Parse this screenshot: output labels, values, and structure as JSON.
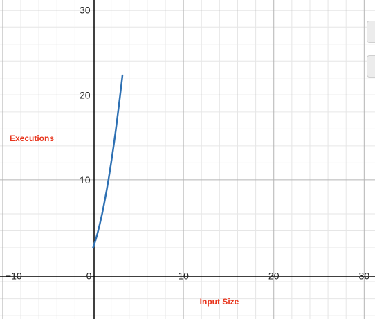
{
  "chart_data": {
    "type": "line",
    "title": "",
    "xlabel": "Input Size",
    "ylabel": "Executions",
    "x_ticks": [
      -10,
      0,
      10,
      20,
      30
    ],
    "y_ticks": [
      10,
      20,
      30
    ],
    "xlim": [
      -10.3,
      31.2
    ],
    "ylim": [
      -6.4,
      31.2
    ],
    "grid": true,
    "series": [
      {
        "color": "#2d70b3",
        "x": [
          0,
          0.25,
          0.5,
          0.75,
          1,
          1.25,
          1.5,
          1.75,
          2,
          2.25,
          2.5,
          2.75,
          3,
          3.25
        ],
        "y": [
          2,
          2.81,
          3.75,
          4.81,
          6,
          7.31,
          8.75,
          10.31,
          12,
          13.81,
          15.75,
          17.81,
          20,
          22.31
        ]
      }
    ]
  },
  "colors": {
    "curve": "#2d70b3",
    "labels": "#e8351d",
    "minor_grid": "#e6e6e6",
    "major_grid": "#b4b4b4",
    "axis": "#000000"
  }
}
